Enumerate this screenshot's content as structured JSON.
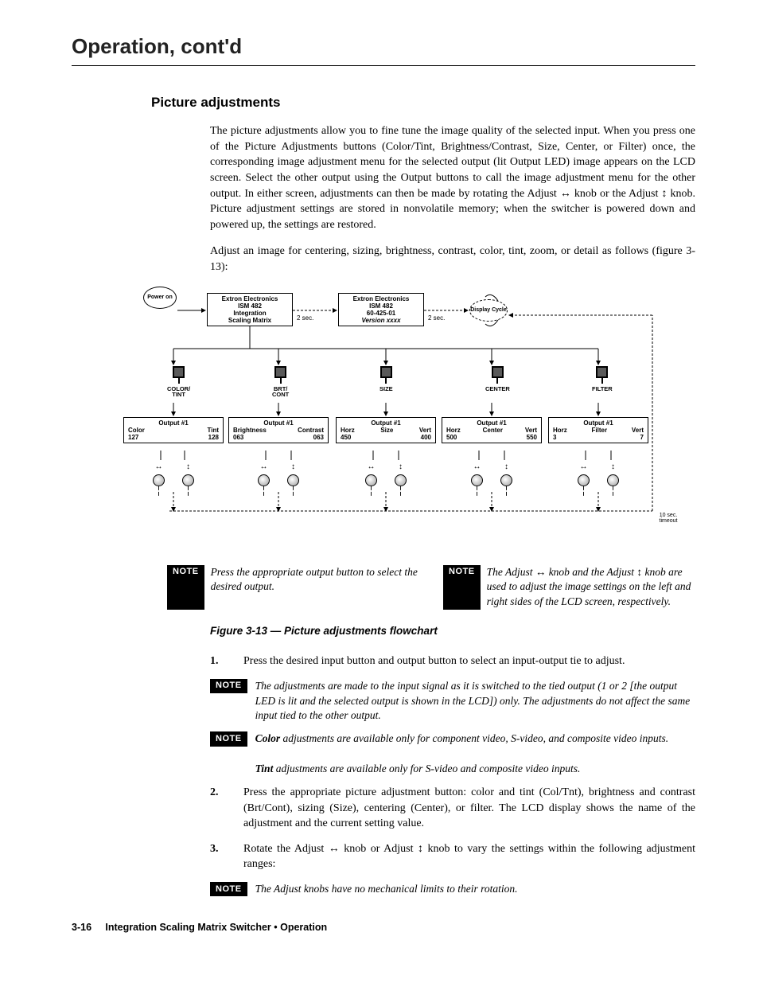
{
  "chapter_title": "Operation, cont'd",
  "section_title": "Picture adjustments",
  "intro_p1": "The picture adjustments allow you to fine tune the image quality of the selected input.  When you press one of the Picture Adjustments buttons (Color/Tint, Brightness/Contrast, Size, Center, or Filter) once, the corresponding image adjustment menu for the selected output (lit Output LED) image appears on the LCD screen.  Select the other output using the Output buttons to call the image adjustment menu for the other output.  In either screen, adjustments can then be made by rotating the Adjust ↔ knob or the Adjust ↕ knob.  Picture adjustment settings are stored in nonvolatile memory; when the switcher is powered down and powered up, the settings are restored.",
  "intro_p2": "Adjust an image for centering, sizing, brightness, contrast, color, tint, zoom, or detail as follows (figure 3-13):",
  "flowchart": {
    "power_on": "Power\non",
    "lcd_top1_l1": "Extron Electronics",
    "lcd_top1_l2": "ISM 482",
    "lcd_top1_l3": "Integration",
    "lcd_top1_l4": "Scaling Matrix",
    "lcd_top2_l1": "Extron Electronics",
    "lcd_top2_l2": "ISM 482",
    "lcd_top2_l3": "60-425-01",
    "lcd_top2_l4": "Version xxxx",
    "delay": "2 sec.",
    "display_cycle": "Display\nCycle",
    "timeout": "10 sec.\ntimeout",
    "columns": [
      {
        "btn": "COLOR/\nTINT",
        "out": "Output #1",
        "l": "Color",
        "lv": "127",
        "r": "Tint",
        "rv": "128"
      },
      {
        "btn": "BRT/\nCONT",
        "out": "Output #1",
        "l": "Brightness",
        "lv": "063",
        "r": "Contrast",
        "rv": "063"
      },
      {
        "btn": "SIZE",
        "out": "Output #1",
        "l": "Horz",
        "m": "Size",
        "r": "Vert",
        "lv": "450",
        "rv": "400"
      },
      {
        "btn": "CENTER",
        "out": "Output #1",
        "l": "Horz",
        "m": "Center",
        "r": "Vert",
        "lv": "500",
        "rv": "550"
      },
      {
        "btn": "FILTER",
        "out": "Output #1",
        "l": "Horz",
        "m": "Filter",
        "r": "Vert",
        "lv": "3",
        "rv": "7"
      }
    ]
  },
  "note_label": "NOTE",
  "note_flow_left": "Press the appropriate output button to select the desired output.",
  "note_flow_right": "The Adjust ↔ knob and the Adjust ↕ knob are used to adjust the image settings on the left and right sides of the LCD screen, respectively.",
  "figure_caption": "Figure 3-13 — Picture adjustments flowchart",
  "step1_num": "1.",
  "step1": "Press the desired input button and output button to select an input-output tie to adjust.",
  "note_a": "The adjustments are made to the input signal as it is switched to the tied output (1 or 2 [the output LED is lit and the selected output is shown in the LCD]) only.  The adjustments do not affect the same input tied to the other output.",
  "note_b_strong1": "Color",
  "note_b_1": " adjustments are available only for component video, S-video, and composite video inputs.",
  "note_b_strong2": "Tint",
  "note_b_2": " adjustments are available only for S-video and composite video inputs.",
  "step2_num": "2.",
  "step2": "Press the appropriate picture adjustment button: color and tint (Col/Tnt), brightness and contrast (Brt/Cont), sizing (Size), centering (Center), or filter. The LCD display shows the name of the adjustment and the current setting value.",
  "step3_num": "3.",
  "step3": "Rotate the Adjust ↔ knob or Adjust ↕ knob to vary the settings within the following adjustment ranges:",
  "note_c": "The Adjust knobs have no mechanical limits to their rotation.",
  "footer_page": "3-16",
  "footer_text": "Integration Scaling Matrix Switcher • Operation"
}
